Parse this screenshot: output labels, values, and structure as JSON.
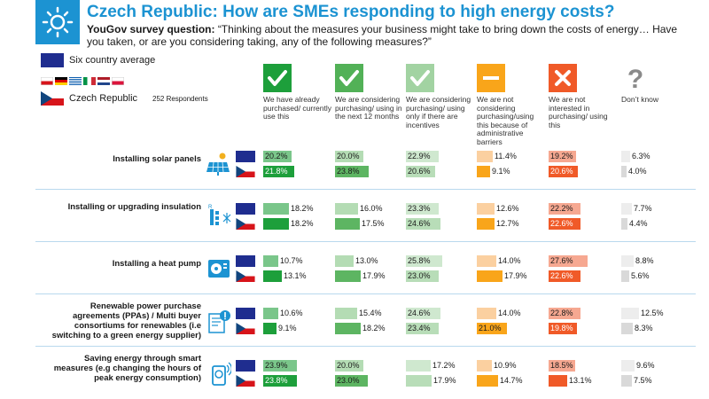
{
  "header": {
    "title": "Czech Republic: How are SMEs responding to high energy costs?",
    "question_prefix": "YouGov survey question:",
    "question_text": "“Thinking about the measures your business might take to bring down the costs of energy… Have you taken, or are you considering taking, any of the following measures?”"
  },
  "legend": {
    "average_label": "Six country average",
    "country_label": "Czech Republic",
    "respondents": "252 Respondents"
  },
  "colors": {
    "brand": "#1c93d2",
    "eu_blue": "#1f2d8f"
  },
  "chart_data": {
    "type": "bar",
    "series_labels": [
      "Six country average",
      "Czech Republic"
    ],
    "columns": [
      {
        "label": "We have already purchased/ currently use this",
        "icon": "check-icon",
        "icon_color": "#1d9f3b",
        "avg_color": "#7ac68a",
        "cz_color": "#1d9f3b"
      },
      {
        "label": "We are considering purchasing/ using in the next 12 months",
        "icon": "check-icon",
        "icon_color": "#52b157",
        "avg_color": "#b4dcb4",
        "cz_color": "#5db562"
      },
      {
        "label": "We are considering purchasing/ using only if there are incentives",
        "icon": "check-icon",
        "icon_color": "#a2d3a2",
        "avg_color": "#cfe8cf",
        "cz_color": "#b8ddb8"
      },
      {
        "label": "We are not considering purchasing/using this because of administrative barriers",
        "icon": "minus-icon",
        "icon_color": "#f9a51a",
        "avg_color": "#fbd0a0",
        "cz_color": "#f9a51a"
      },
      {
        "label": "We are not interested in purchasing/ using this",
        "icon": "cross-icon",
        "icon_color": "#f05a28",
        "avg_color": "#f6a891",
        "cz_color": "#f05a28"
      },
      {
        "label": "Don’t know",
        "icon": "question-icon",
        "icon_color": "#d0d0d0",
        "avg_color": "#ededed",
        "cz_color": "#d9d9d9"
      }
    ],
    "rows": [
      {
        "label": "Installing solar panels",
        "icon": "solar-panel-icon",
        "avg": [
          20.2,
          20.0,
          22.9,
          11.4,
          19.2,
          6.3
        ],
        "cz": [
          21.8,
          23.8,
          20.6,
          9.1,
          20.6,
          4.0
        ],
        "avg_text": [
          "20.2%",
          "20.0%",
          "22.9%",
          "11.4%",
          "19.2%",
          "6.3%"
        ],
        "cz_text": [
          "21.8%",
          "23.8%",
          "20.6%",
          "9.1%",
          "20.6%",
          "4.0%"
        ]
      },
      {
        "label": "Installing or upgrading insulation",
        "icon": "insulation-icon",
        "avg": [
          18.2,
          16.0,
          23.3,
          12.6,
          22.2,
          7.7
        ],
        "cz": [
          18.2,
          17.5,
          24.6,
          12.7,
          22.6,
          4.4
        ],
        "avg_text": [
          "18.2%",
          "16.0%",
          "23.3%",
          "12.6%",
          "22.2%",
          "7.7%"
        ],
        "cz_text": [
          "18.2%",
          "17.5%",
          "24.6%",
          "12.7%",
          "22.6%",
          "4.4%"
        ]
      },
      {
        "label": "Installing a heat pump",
        "icon": "heat-pump-icon",
        "avg": [
          10.7,
          13.0,
          25.8,
          14.0,
          27.6,
          8.8
        ],
        "cz": [
          13.1,
          17.9,
          23.0,
          17.9,
          22.6,
          5.6
        ],
        "avg_text": [
          "10.7%",
          "13.0%",
          "25.8%",
          "14.0%",
          "27.6%",
          "8.8%"
        ],
        "cz_text": [
          "13.1%",
          "17.9%",
          "23.0%",
          "17.9%",
          "22.6%",
          "5.6%"
        ]
      },
      {
        "label": "Renewable power purchase agreements (PPAs) / Multi buyer consortiums for renewables (i.e switching to a green energy supplier)",
        "icon": "green-energy-contract-icon",
        "avg": [
          10.6,
          15.4,
          24.6,
          14.0,
          22.8,
          12.5
        ],
        "cz": [
          9.1,
          18.2,
          23.4,
          21.0,
          19.8,
          8.3
        ],
        "avg_text": [
          "10.6%",
          "15.4%",
          "24.6%",
          "14.0%",
          "22.8%",
          "12.5%"
        ],
        "cz_text": [
          "9.1%",
          "18.2%",
          "23.4%",
          "21.0%",
          "19.8%",
          "8.3%"
        ]
      },
      {
        "label": "Saving energy through smart measures (e.g changing the hours of peak energy consumption)",
        "icon": "smart-meter-icon",
        "avg": [
          23.9,
          20.0,
          17.2,
          10.9,
          18.5,
          9.6
        ],
        "cz": [
          23.8,
          23.0,
          17.9,
          14.7,
          13.1,
          7.5
        ],
        "avg_text": [
          "23.9%",
          "20.0%",
          "17.2%",
          "10.9%",
          "18.5%",
          "9.6%"
        ],
        "cz_text": [
          "23.8%",
          "23.0%",
          "17.9%",
          "14.7%",
          "13.1%",
          "7.5%"
        ]
      }
    ]
  }
}
